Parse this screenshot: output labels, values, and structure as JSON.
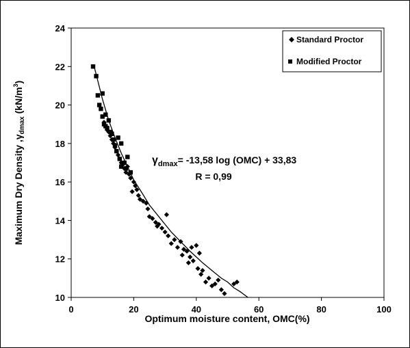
{
  "chart_data": {
    "type": "scatter",
    "xlabel": "Optimum moisture content, OMC(%)",
    "ylabel_main": "Maximum Dry Density ,",
    "ylabel_sym": "γ",
    "ylabel_sub": "dmax",
    "ylabel_unit": " (kN/m",
    "ylabel_sup": "3",
    "ylabel_end": ")",
    "xlim": [
      0,
      100
    ],
    "ylim": [
      10,
      24
    ],
    "xticks": [
      0,
      20,
      40,
      60,
      80,
      100
    ],
    "yticks": [
      10,
      12,
      14,
      16,
      18,
      20,
      22,
      24
    ],
    "grid": false,
    "legend_position": "top-right",
    "equation": {
      "sym": "γ",
      "sub": "dmax",
      "rest": "= -13,58 log (OMC) + 33,83",
      "r_text": "R = 0,99"
    },
    "series": [
      {
        "name": "Standard Proctor",
        "marker": "diamond",
        "x": [
          10.5,
          11,
          11.5,
          12,
          12.5,
          13,
          13.5,
          14,
          14.5,
          15,
          15.5,
          16,
          16.5,
          17,
          17.5,
          18,
          18.5,
          19,
          19.5,
          20,
          20.5,
          21,
          21.5,
          22,
          23,
          24,
          24.5,
          25,
          26,
          27,
          27.5,
          28,
          29,
          30,
          30.5,
          31,
          32,
          33,
          34,
          35,
          35.5,
          36,
          37,
          37.5,
          38,
          38.5,
          39,
          40,
          40.5,
          41,
          41.5,
          42,
          43,
          44,
          45,
          46,
          47,
          48,
          49,
          52,
          53
        ],
        "y": [
          19.1,
          18.9,
          18.7,
          18.6,
          18.4,
          18.2,
          18.0,
          17.8,
          17.6,
          17.4,
          17.2,
          17.0,
          16.9,
          16.7,
          16.5,
          16.8,
          16.4,
          16.2,
          15.5,
          16.0,
          15.8,
          15.6,
          15.3,
          15.1,
          15.0,
          14.9,
          14.6,
          14.2,
          14.1,
          13.9,
          13.7,
          13.8,
          13.6,
          13.4,
          14.3,
          13.2,
          12.8,
          13.0,
          12.6,
          12.9,
          12.2,
          12.5,
          12.4,
          11.8,
          12.1,
          12.6,
          11.9,
          12.7,
          11.5,
          12.3,
          11.2,
          11.4,
          10.8,
          11.0,
          10.6,
          10.7,
          10.9,
          10.4,
          10.2,
          10.7,
          10.8
        ]
      },
      {
        "name": "Modified Proctor",
        "marker": "square",
        "x": [
          7,
          8,
          8.5,
          9,
          9.5,
          10,
          10,
          10.5,
          11,
          11,
          11.5,
          12,
          12.5,
          13,
          13.5,
          14,
          14.5,
          15,
          15.5,
          16,
          16,
          17,
          17.5,
          18,
          19
        ],
        "y": [
          22.0,
          21.5,
          20.5,
          20.0,
          19.8,
          20.6,
          19.4,
          19.0,
          18.9,
          19.5,
          18.8,
          19.2,
          18.6,
          18.5,
          18.2,
          17.9,
          17.6,
          18.3,
          17.2,
          16.8,
          18.0,
          17.0,
          16.7,
          17.3,
          16.5
        ]
      },
      {
        "name": "",
        "type": "line",
        "x": [
          7.5,
          10,
          12,
          14,
          16,
          18,
          20,
          22,
          25,
          28,
          30,
          32,
          35,
          38,
          40,
          42,
          45,
          48,
          50,
          52,
          54,
          56.5
        ],
        "y": [
          21.9,
          20.3,
          19.2,
          18.3,
          17.5,
          16.8,
          16.1,
          15.6,
          14.8,
          14.2,
          13.8,
          13.4,
          12.9,
          12.4,
          12.1,
          11.8,
          11.4,
          11.0,
          10.8,
          10.5,
          10.3,
          10.0
        ]
      }
    ]
  }
}
